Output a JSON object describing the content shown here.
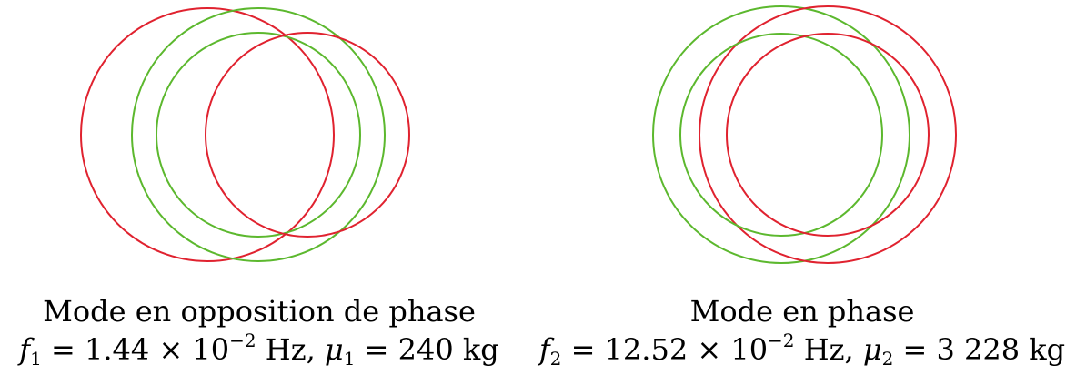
{
  "colors": {
    "red_ring": "#e0222f",
    "green_ring": "#5cb82e",
    "background": "#ffffff",
    "text": "#000000"
  },
  "left": {
    "mode_label": "Mode en opposition de phase",
    "freq_symbol": "f",
    "freq_index": "1",
    "freq_mantissa": "1.44",
    "freq_exponent": "−2",
    "freq_unit": "Hz,",
    "mass_symbol": "μ",
    "mass_index": "1",
    "mass_value": "240",
    "mass_unit": "kg"
  },
  "right": {
    "mode_label": "Mode en phase",
    "freq_symbol": "f",
    "freq_index": "2",
    "freq_mantissa": "12.52",
    "freq_exponent": "−2",
    "freq_unit": "Hz,",
    "mass_symbol": "μ",
    "mass_index": "2",
    "mass_value": "3 228",
    "mass_unit": "kg"
  },
  "common": {
    "equals": "=",
    "times": "×",
    "ten": "10"
  }
}
